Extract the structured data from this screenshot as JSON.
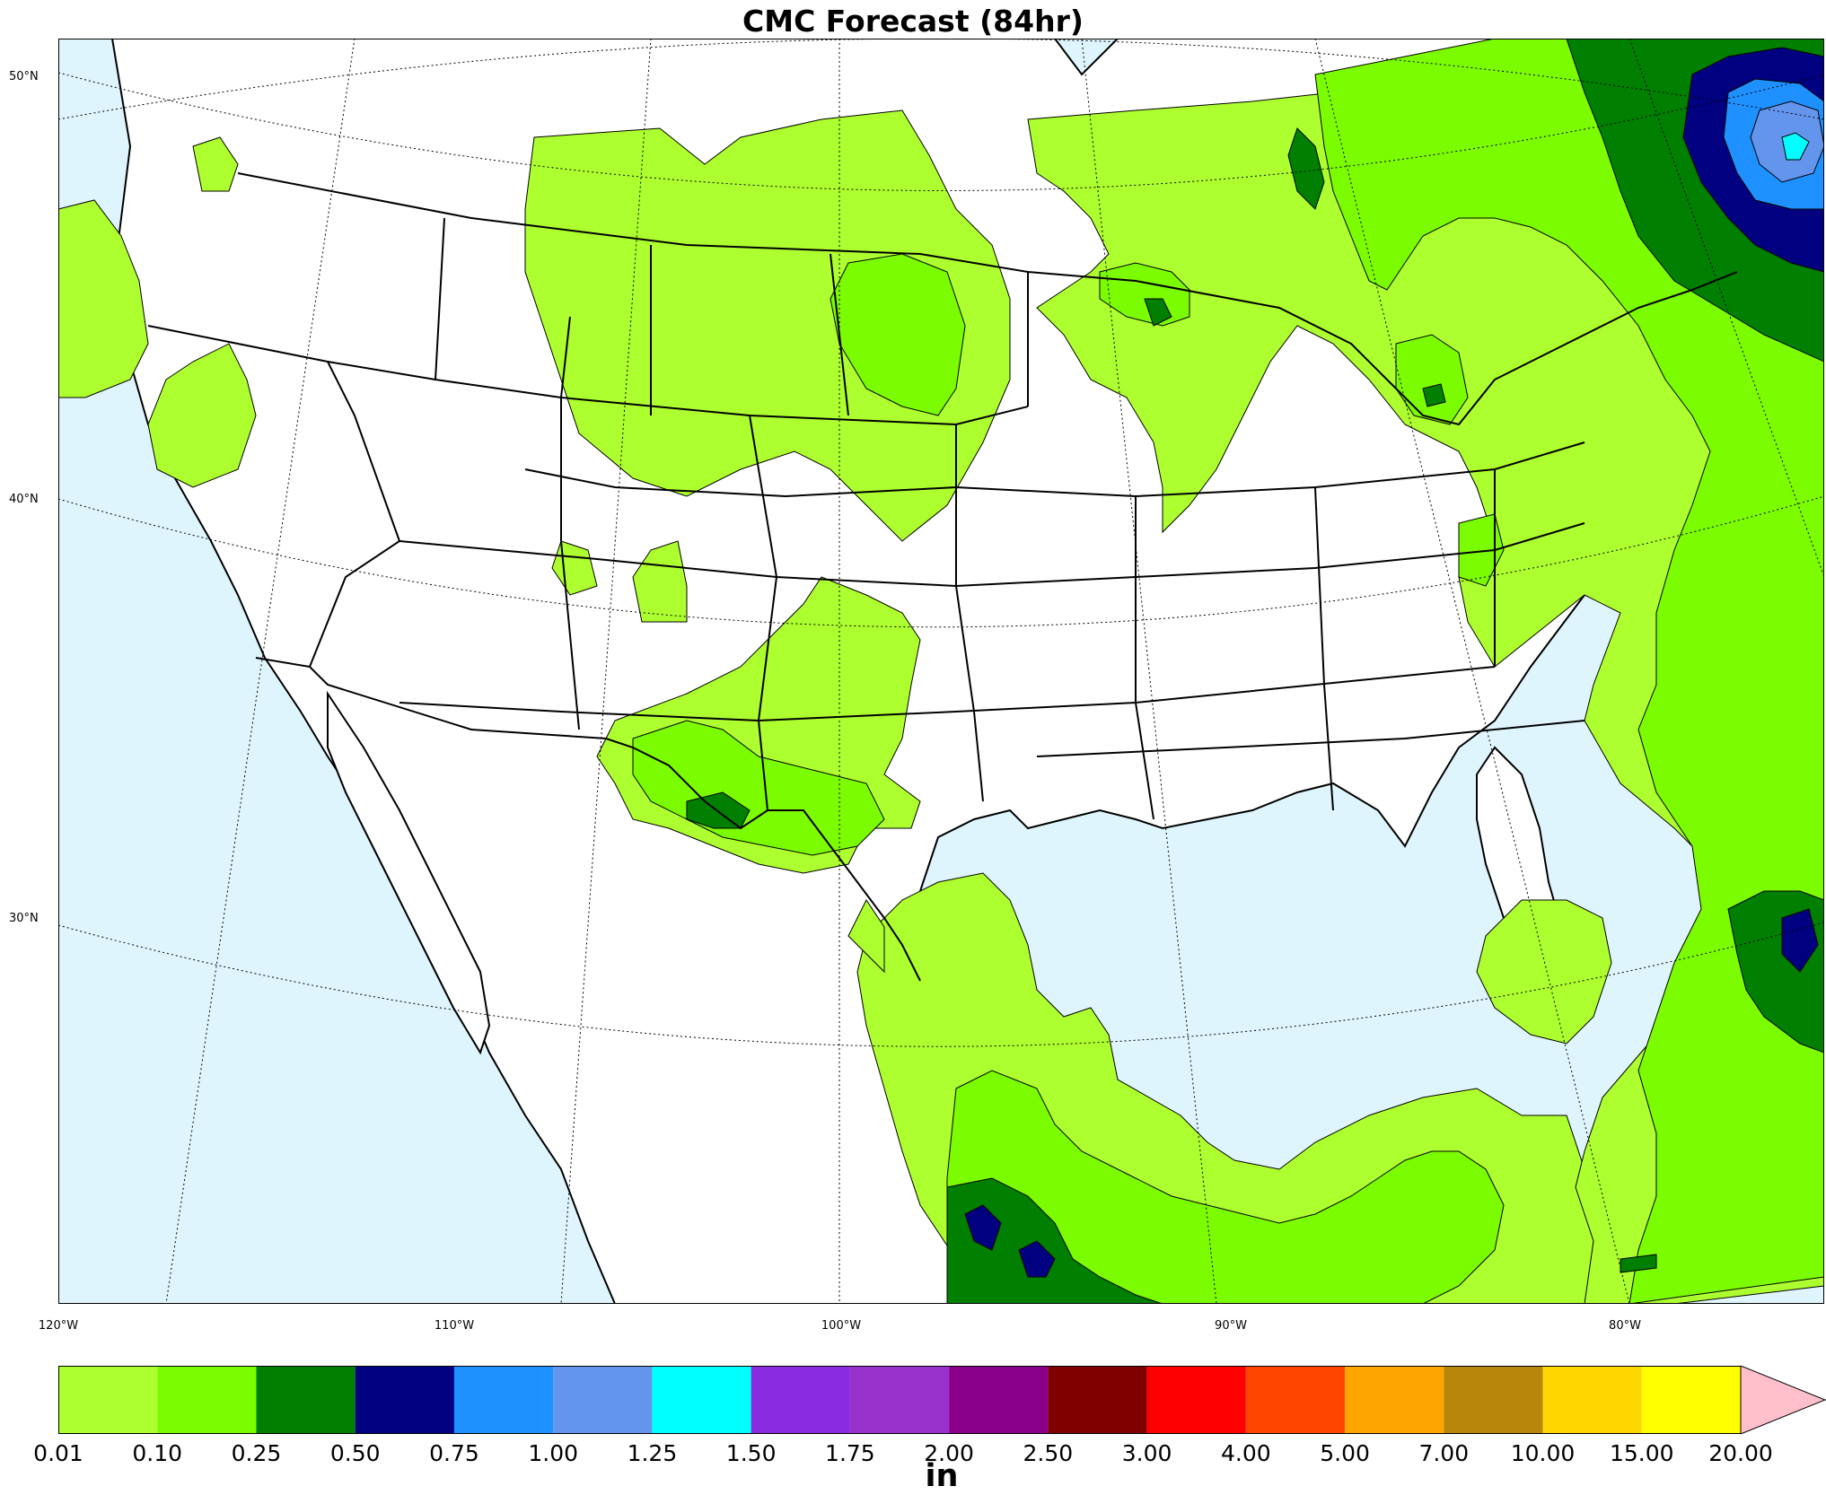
{
  "title": "CMC Forecast (84hr)",
  "lat_labels": [
    "50°N",
    "40°N",
    "30°N"
  ],
  "lon_labels": [
    "120°W",
    "110°W",
    "100°W",
    "90°W",
    "80°W"
  ],
  "colorbar": {
    "units": "in",
    "ticks": [
      "0.01",
      "0.10",
      "0.25",
      "0.50",
      "0.75",
      "1.00",
      "1.25",
      "1.50",
      "1.75",
      "2.00",
      "2.50",
      "3.00",
      "4.00",
      "5.00",
      "7.00",
      "10.00",
      "15.00",
      "20.00"
    ],
    "colors": [
      "#adff2f",
      "#7cfc00",
      "#007f00",
      "#000080",
      "#1e90ff",
      "#6495ed",
      "#00ffff",
      "#8a2be2",
      "#9932cc",
      "#8b008b",
      "#800000",
      "#ff0000",
      "#ff4500",
      "#ffa500",
      "#b8860b",
      "#ffd700",
      "#ffff00"
    ],
    "extend_color": "#ffc0cb"
  },
  "colors": {
    "ocean": "#dff5fd",
    "land": "#ffffff"
  }
}
